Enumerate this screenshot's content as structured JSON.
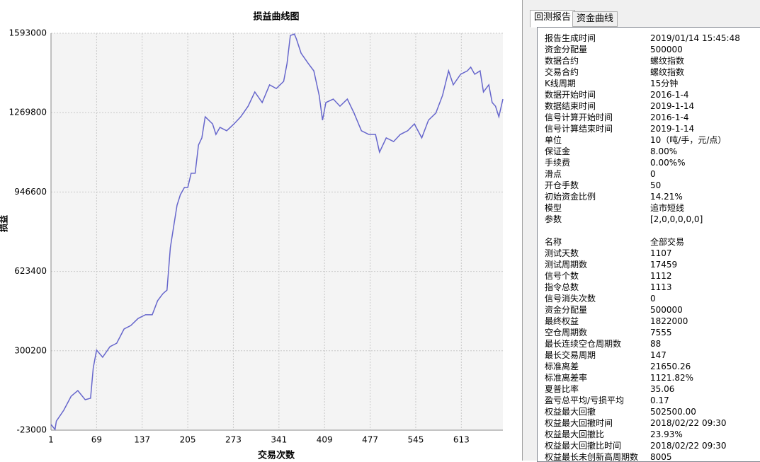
{
  "chart_data": {
    "type": "line",
    "title": "损益曲线图",
    "x_label": "交易次数",
    "y_label": "损益",
    "x": [
      1,
      7,
      9,
      20,
      31,
      41,
      52,
      60,
      64,
      69,
      78,
      89,
      99,
      110,
      120,
      131,
      142,
      152,
      160,
      168,
      174,
      179,
      184,
      189,
      194,
      200,
      205,
      210,
      216,
      221,
      226,
      231,
      242,
      247,
      253,
      263,
      274,
      284,
      295,
      305,
      316,
      327,
      337,
      348,
      353,
      358,
      364,
      367,
      374,
      385,
      393,
      401,
      406,
      411,
      422,
      432,
      443,
      453,
      464,
      475,
      485,
      491,
      501,
      512,
      522,
      533,
      543,
      554,
      564,
      575,
      585,
      594,
      601,
      612,
      622,
      627,
      633,
      641,
      646,
      654,
      659,
      664,
      669,
      675
    ],
    "series": [
      {
        "name": "损益",
        "color": "#6666cc",
        "values": [
          0,
          -20000,
          14000,
          58000,
          115000,
          138000,
          101000,
          107000,
          230000,
          303000,
          274000,
          317000,
          331000,
          389000,
          403000,
          432000,
          447000,
          447000,
          504000,
          533000,
          547000,
          720000,
          807000,
          893000,
          936000,
          965000,
          965000,
          1023000,
          1023000,
          1138000,
          1167000,
          1253000,
          1224000,
          1181000,
          1210000,
          1196000,
          1224000,
          1253000,
          1296000,
          1354000,
          1311000,
          1383000,
          1368000,
          1397000,
          1469000,
          1584000,
          1590000,
          1570000,
          1512000,
          1469000,
          1440000,
          1340000,
          1239000,
          1311000,
          1325000,
          1296000,
          1325000,
          1268000,
          1196000,
          1181000,
          1181000,
          1109000,
          1167000,
          1152000,
          1181000,
          1196000,
          1224000,
          1167000,
          1239000,
          1268000,
          1340000,
          1440000,
          1383000,
          1426000,
          1440000,
          1455000,
          1426000,
          1440000,
          1354000,
          1383000,
          1311000,
          1296000,
          1253000,
          1325000
        ]
      }
    ],
    "xlim": [
      1,
      675
    ],
    "xticks": [
      1,
      69,
      137,
      205,
      273,
      341,
      409,
      477,
      545,
      613
    ],
    "ylim": [
      -23000,
      1593000
    ],
    "yticks": [
      -23000,
      300200,
      623400,
      946600,
      1269800,
      1593000
    ],
    "grid": true
  },
  "tabs": [
    "回测报告",
    "资金曲线"
  ],
  "report": {
    "sections": [
      {
        "rows": [
          [
            "报告生成时间",
            "2019/01/14 15:45:48"
          ],
          [
            "资金分配量",
            "500000"
          ],
          [
            "数据合约",
            "螺纹指数"
          ],
          [
            "交易合约",
            "螺纹指数"
          ],
          [
            "K线周期",
            "15分钟"
          ],
          [
            "数据开始时间",
            "2016-1-4"
          ],
          [
            "数据结束时间",
            "2019-1-14"
          ],
          [
            "信号计算开始时间",
            "2016-1-4"
          ],
          [
            "信号计算结束时间",
            "2019-1-14"
          ],
          [
            "单位",
            "10（吨/手，元/点）"
          ],
          [
            "保证金",
            "8.00%"
          ],
          [
            "手续费",
            "0.00%%"
          ],
          [
            "滑点",
            "0"
          ],
          [
            "开仓手数",
            "50"
          ],
          [
            "初始资金比例",
            "14.21%"
          ],
          [
            "模型",
            "追市短线"
          ],
          [
            "参数",
            "[2,0,0,0,0,0]"
          ]
        ]
      },
      {
        "rows": [
          [
            "名称",
            "全部交易"
          ],
          [
            "测试天数",
            "1107"
          ],
          [
            "测试周期数",
            "17459"
          ],
          [
            "信号个数",
            "1112"
          ],
          [
            "指令总数",
            "1113"
          ],
          [
            "信号消失次数",
            "0"
          ],
          [
            "资金分配量",
            "500000"
          ],
          [
            "最终权益",
            "1822000"
          ],
          [
            "空仓周期数",
            "7555"
          ],
          [
            "最长连续空仓周期数",
            "88"
          ],
          [
            "最长交易周期",
            "147"
          ],
          [
            "标准离差",
            "21650.26"
          ],
          [
            "标准离差率",
            "1121.82%"
          ],
          [
            "夏普比率",
            "35.06"
          ],
          [
            "盈亏总平均/亏损平均",
            "0.17"
          ],
          [
            "权益最大回撤",
            "502500.00"
          ],
          [
            "权益最大回撤时间",
            "2018/02/22 09:30"
          ],
          [
            "权益最大回撤比",
            "23.93%"
          ],
          [
            "权益最大回撤比时间",
            "2018/02/22 09:30"
          ],
          [
            "权益最长未创新高周期数",
            "8005"
          ]
        ]
      }
    ]
  }
}
